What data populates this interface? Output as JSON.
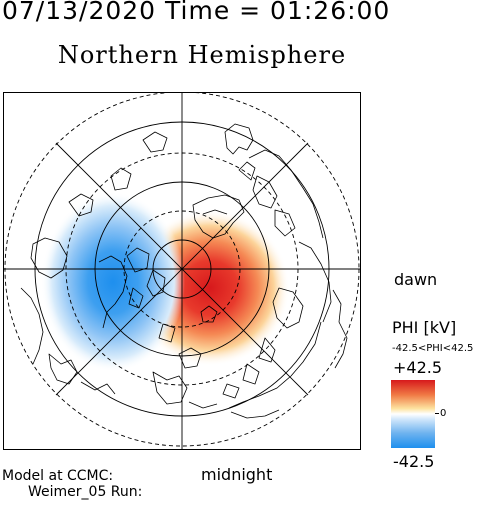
{
  "header": {
    "datetime": "07/13/2020 Time = 01:26:00",
    "title": "Northern Hemisphere"
  },
  "map": {
    "projection": "polar stereographic, north pole centered",
    "labels": {
      "dawn": "dawn",
      "midnight": "midnight"
    }
  },
  "colorbar": {
    "title": "PHI [kV]",
    "range_text": "-42.5<PHI<42.5",
    "max_label": "+42.5",
    "min_label": "-42.5",
    "zero_label": "0",
    "max_value": 42.5,
    "min_value": -42.5,
    "colors": {
      "positive": "#d7191c",
      "zero": "#ffffff",
      "negative": "#1e8fee"
    }
  },
  "footer": {
    "model_line1": "Model at CCMC:",
    "model_line2": "Weimer_05 Run:"
  }
}
